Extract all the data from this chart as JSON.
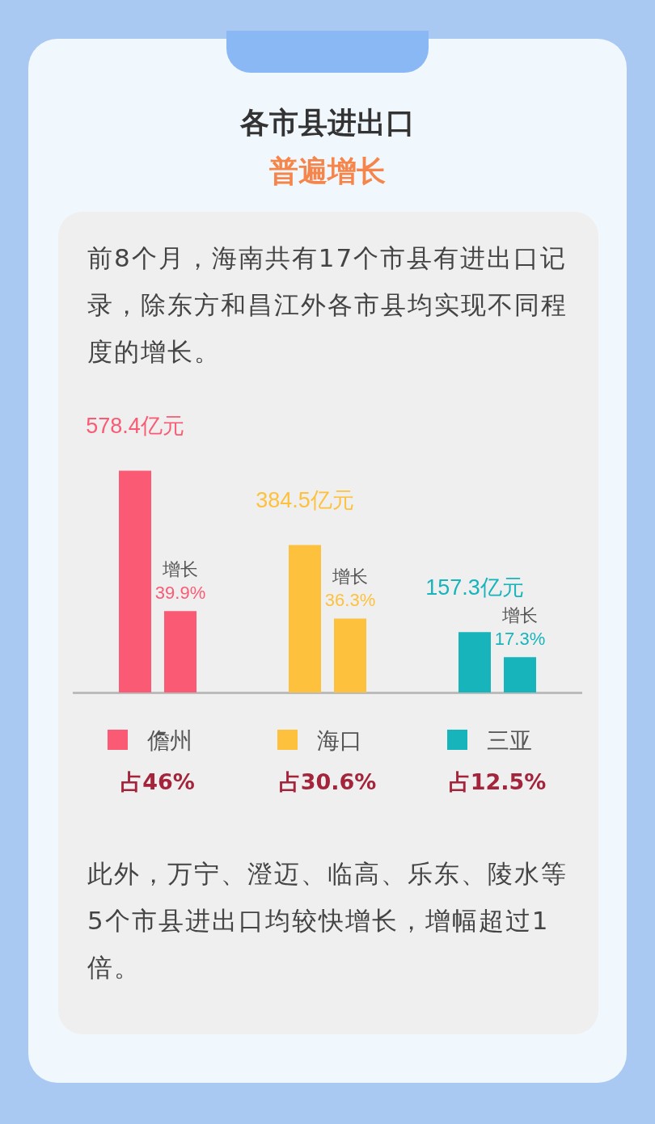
{
  "chart_data": {
    "type": "bar",
    "title": "各市县进出口",
    "subtitle": "普遍增长",
    "categories": [
      "儋州",
      "海口",
      "三亚"
    ],
    "series": [
      {
        "colors": [
          "#fb5a74",
          "#fec13e",
          "#17b4bb"
        ],
        "values": [
          578.4,
          384.5,
          157.3
        ],
        "value_labels": [
          "578.4亿元",
          "384.5亿元",
          "157.3亿元"
        ]
      },
      {
        "name": "增长",
        "axis": "y2",
        "colors": [
          "#fb5a74",
          "#fec13e",
          "#17b4bb"
        ],
        "values": [
          39.9,
          36.3,
          17.3
        ],
        "value_labels": [
          "39.9%",
          "36.3%",
          "17.3%"
        ]
      }
    ],
    "tick_labels": "x",
    "annotations": [
      "前8个月，海南共有17个市县有进出口记录，除东方和昌江外各市县均实现不同程度的增长。",
      "占46%",
      "占30.6%",
      "占12.5%",
      "此外，万宁、澄迈、临高、乐东、陵水等5个市县进出口均较快增长，增幅超过1倍。"
    ]
  }
}
